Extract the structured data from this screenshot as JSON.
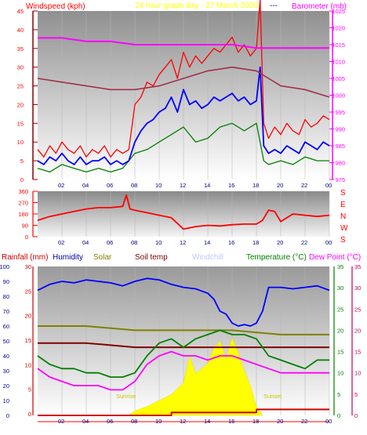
{
  "header": {
    "left_label": "Windspeed (kph)",
    "center_label": "24 hour graph day - 27 March 2020",
    "sep": "---",
    "right_label": "Barometer (mb)"
  },
  "bottom_header": {
    "rainfall": "Rainfall (mm)",
    "humidity": "Humidity",
    "solar": "Solar",
    "soil": "Soil temp",
    "windchill": "Windchill",
    "temperature": "Temperature (°C)",
    "dewpoint": "Dew Point (°C)"
  },
  "compass": [
    "S",
    "E",
    "N",
    "W",
    "S"
  ],
  "annotations": {
    "sunrise": "Sunrise",
    "sunset": "Sunset"
  },
  "colors": {
    "windspeed": "#ff0000",
    "gust_blue": "#0000ff",
    "wind_green": "#008000",
    "barometer_left": "#8b0000",
    "barometer": "#ff00ff",
    "baro_line": "#a0304a",
    "direction": "#ff0000",
    "humidity": "#0000ff",
    "solar": "#808000",
    "soil": "#800000",
    "temperature": "#008000",
    "dewpoint": "#ff00ff",
    "solar_fill": "#ffff00",
    "rain_line": "#cc0000"
  },
  "chart_data": [
    {
      "type": "line",
      "name": "wind-baro",
      "x_ticks": [
        "02",
        "04",
        "06",
        "08",
        "10",
        "12",
        "14",
        "16",
        "18",
        "20",
        "22",
        "00"
      ],
      "xlim": [
        0,
        24
      ],
      "ylabel": "Windspeed (kph)",
      "ylim": [
        0,
        45
      ],
      "y_ticks": [
        0,
        5,
        10,
        15,
        20,
        25,
        30,
        35,
        40,
        45
      ],
      "y2label": "Barometer (mb)",
      "y2lim": [
        975,
        1025
      ],
      "y2_ticks": [
        975,
        980,
        985,
        990,
        995,
        1000,
        1005,
        1010,
        1015,
        1020,
        1025
      ],
      "series": [
        {
          "role": "gust",
          "axis": "left",
          "x": [
            0,
            0.5,
            1,
            1.5,
            2,
            2.5,
            3,
            3.5,
            4,
            4.5,
            5,
            5.5,
            6,
            6.5,
            7,
            7.5,
            8,
            8.5,
            9,
            9.5,
            10,
            10.5,
            11,
            11.5,
            12,
            12.5,
            13,
            13.5,
            14,
            14.5,
            15,
            15.5,
            16,
            16.5,
            17,
            17.5,
            18,
            18.3,
            18.6,
            19,
            19.5,
            20,
            20.5,
            21,
            21.5,
            22,
            22.5,
            23,
            23.5,
            24
          ],
          "values": [
            8,
            6,
            9,
            7,
            10,
            8,
            7,
            9,
            6,
            8,
            7,
            9,
            6,
            8,
            7,
            8,
            20,
            22,
            26,
            25,
            28,
            30,
            32,
            27,
            34,
            30,
            33,
            31,
            33,
            35,
            34,
            36,
            38,
            34,
            36,
            33,
            35,
            48,
            15,
            11,
            14,
            12,
            15,
            13,
            12,
            16,
            14,
            15,
            17,
            16
          ]
        },
        {
          "role": "wind",
          "axis": "left",
          "x": [
            0,
            0.5,
            1,
            1.5,
            2,
            2.5,
            3,
            3.5,
            4,
            4.5,
            5,
            5.5,
            6,
            6.5,
            7,
            7.5,
            8,
            8.5,
            9,
            9.5,
            10,
            10.5,
            11,
            11.5,
            12,
            12.5,
            13,
            13.5,
            14,
            14.5,
            15,
            15.5,
            16,
            16.5,
            17,
            17.5,
            18,
            18.3,
            18.6,
            19,
            19.5,
            20,
            20.5,
            21,
            21.5,
            22,
            22.5,
            23,
            23.5,
            24
          ],
          "values": [
            5,
            4,
            6,
            5,
            7,
            5,
            4,
            6,
            4,
            5,
            5,
            6,
            4,
            5,
            4,
            5,
            10,
            13,
            15,
            16,
            18,
            19,
            22,
            18,
            24,
            20,
            21,
            19,
            20,
            22,
            21,
            22,
            23,
            21,
            22,
            20,
            21,
            30,
            9,
            7,
            8,
            7,
            9,
            8,
            7,
            10,
            9,
            8,
            10,
            9
          ]
        },
        {
          "role": "wind-low",
          "axis": "left",
          "x": [
            0,
            1,
            2,
            3,
            4,
            5,
            6,
            7,
            8,
            9,
            10,
            11,
            12,
            13,
            14,
            15,
            16,
            17,
            18,
            18.6,
            19,
            20,
            21,
            22,
            23,
            24
          ],
          "values": [
            3,
            2,
            4,
            3,
            2,
            3,
            2,
            3,
            7,
            8,
            10,
            12,
            14,
            10,
            11,
            14,
            15,
            13,
            15,
            5,
            4,
            5,
            4,
            6,
            5,
            5
          ]
        },
        {
          "role": "barometer",
          "axis": "right",
          "x": [
            0,
            2,
            4,
            6,
            8,
            10,
            12,
            14,
            16,
            18,
            20,
            22,
            24
          ],
          "values": [
            1017,
            1017,
            1016,
            1016,
            1015,
            1015,
            1015,
            1015,
            1015,
            1014,
            1014,
            1014,
            1014
          ]
        },
        {
          "role": "barometer-trace",
          "axis": "left",
          "x": [
            0,
            2,
            4,
            6,
            8,
            10,
            12,
            14,
            16,
            18,
            19,
            20,
            22,
            24
          ],
          "values": [
            27,
            26,
            25,
            24,
            24,
            25,
            27,
            29,
            30,
            29,
            27,
            25,
            24,
            22
          ]
        }
      ]
    },
    {
      "type": "line",
      "name": "wind-direction",
      "x_ticks": [
        "02",
        "04",
        "06",
        "08",
        "10",
        "12",
        "14",
        "16",
        "18",
        "20",
        "22",
        "00"
      ],
      "xlim": [
        0,
        24
      ],
      "ylim": [
        0,
        360
      ],
      "y_ticks": [
        0,
        90,
        180,
        270,
        360
      ],
      "series": [
        {
          "role": "direction",
          "x": [
            0,
            1,
            2,
            3,
            4,
            5,
            6,
            7,
            7.3,
            7.6,
            8,
            9,
            10,
            11,
            12,
            13,
            14,
            15,
            16,
            17,
            18,
            18.5,
            19,
            19.5,
            20,
            21,
            22,
            23,
            24
          ],
          "values": [
            130,
            160,
            180,
            200,
            220,
            230,
            230,
            240,
            330,
            220,
            210,
            190,
            170,
            150,
            60,
            80,
            90,
            85,
            95,
            100,
            100,
            130,
            210,
            200,
            120,
            180,
            170,
            160,
            170
          ]
        }
      ]
    },
    {
      "type": "line",
      "name": "temp-humidity",
      "x_ticks": [
        "02",
        "04",
        "06",
        "08",
        "10",
        "12",
        "14",
        "16",
        "18",
        "20",
        "22",
        "00"
      ],
      "xlim": [
        0,
        24
      ],
      "y_left_ticks_rain": [
        0,
        5,
        10,
        15,
        20,
        25,
        30
      ],
      "y_left_ticks_pct": [
        0,
        10,
        20,
        30,
        40,
        50,
        60,
        70,
        80,
        90,
        100
      ],
      "ylim": [
        0,
        100
      ],
      "y2_ticks": [
        0,
        5,
        10,
        15,
        20,
        25,
        30,
        35
      ],
      "y2lim": [
        0,
        35
      ],
      "series": [
        {
          "role": "humidity",
          "axis": "left",
          "x": [
            0,
            1,
            2,
            3,
            4,
            5,
            6,
            7,
            8,
            9,
            10,
            11,
            12,
            13,
            14,
            14.5,
            15,
            15.5,
            16,
            16.5,
            17,
            17.5,
            18,
            18.5,
            19,
            20,
            21,
            22,
            23,
            24
          ],
          "values": [
            84,
            88,
            90,
            89,
            91,
            90,
            89,
            87,
            90,
            92,
            91,
            88,
            86,
            85,
            82,
            78,
            70,
            68,
            62,
            60,
            61,
            60,
            62,
            70,
            86,
            86,
            85,
            86,
            87,
            84
          ]
        },
        {
          "role": "solar",
          "axis": "right",
          "x": [
            0,
            4,
            8,
            12,
            16,
            20,
            24
          ],
          "values": [
            21,
            21,
            20,
            20,
            20,
            19,
            19
          ]
        },
        {
          "role": "soil",
          "axis": "right",
          "x": [
            0,
            4,
            8,
            12,
            16,
            20,
            24
          ],
          "values": [
            17,
            17,
            16,
            16,
            16,
            16,
            16
          ]
        },
        {
          "role": "temperature",
          "axis": "right",
          "x": [
            0,
            1,
            2,
            3,
            4,
            5,
            6,
            7,
            8,
            9,
            10,
            11,
            12,
            13,
            14,
            15,
            16,
            17,
            18,
            19,
            20,
            21,
            22,
            23,
            24
          ],
          "values": [
            14,
            12,
            11,
            11,
            10,
            10,
            9,
            9,
            10,
            14,
            17,
            18,
            16,
            18,
            19,
            20,
            19,
            19,
            18,
            14,
            13,
            12,
            11,
            13,
            13
          ]
        },
        {
          "role": "dewpoint",
          "axis": "right",
          "x": [
            0,
            1,
            2,
            3,
            4,
            5,
            6,
            7,
            8,
            9,
            10,
            11,
            12,
            13,
            14,
            15,
            16,
            17,
            18,
            19,
            20,
            21,
            22,
            23,
            24
          ],
          "values": [
            11,
            9,
            8,
            7,
            7,
            7,
            6,
            6,
            8,
            12,
            14,
            15,
            14,
            14,
            13,
            14,
            14,
            13,
            12,
            11,
            10,
            10,
            10,
            10,
            10
          ]
        },
        {
          "role": "rain",
          "axis": "left",
          "x": [
            0,
            11,
            11.01,
            18,
            18.01,
            24
          ],
          "values": [
            0,
            0,
            2,
            2,
            4,
            4
          ]
        }
      ]
    }
  ]
}
